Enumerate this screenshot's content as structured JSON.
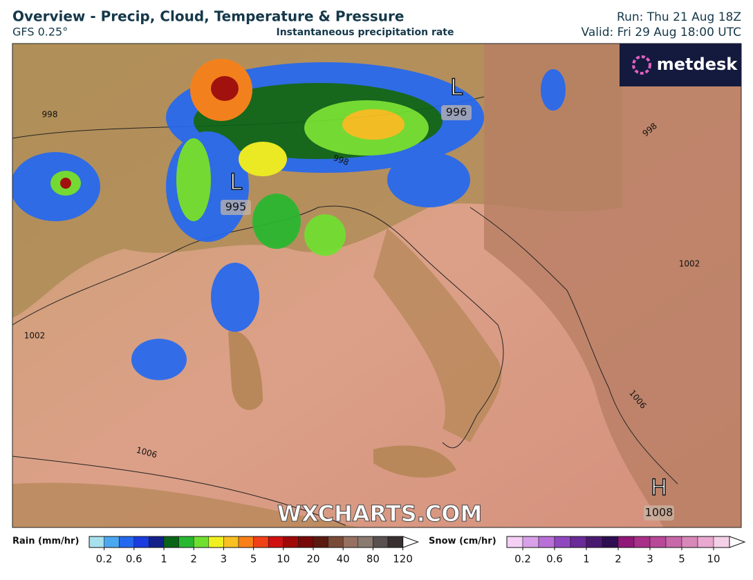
{
  "header": {
    "title": "Overview - Precip, Cloud, Temperature & Pressure",
    "model": "GFS 0.25°",
    "subtitle": "Instantaneous precipitation rate",
    "run": "Run: Thu 21 Aug 18Z",
    "valid": "Valid: Fri 29 Aug 18:00 UTC"
  },
  "logo": "metdesk",
  "watermark": "WXCHARTS.COM",
  "map": {
    "pressure_centers": [
      {
        "symbol": "L",
        "value": "996"
      },
      {
        "symbol": "L",
        "value": "995"
      },
      {
        "symbol": "H",
        "value": "1008"
      }
    ],
    "isobar_labels": [
      "998",
      "998",
      "998",
      "1002",
      "1002",
      "1006",
      "1006"
    ]
  },
  "legend": {
    "rain": {
      "label": "Rain (mm/hr)",
      "ticks": [
        0.2,
        0.6,
        1,
        2,
        3,
        5,
        10,
        20,
        40,
        80,
        120
      ],
      "colors": [
        "#a8e0ec",
        "#4aa8f0",
        "#2468f0",
        "#1a3ce0",
        "#14208a",
        "#0a6418",
        "#28b830",
        "#70e030",
        "#f0f020",
        "#f8c020",
        "#f88018",
        "#f04018",
        "#d01010",
        "#a00808",
        "#780808",
        "#5a1a10",
        "#7a4a38",
        "#967060",
        "#8a7a70",
        "#5a5050",
        "#383030"
      ]
    },
    "snow": {
      "label": "Snow (cm/hr)",
      "ticks": [
        0.2,
        0.6,
        1,
        2,
        3,
        5,
        10
      ],
      "colors": [
        "#f4d0f4",
        "#d8a0e8",
        "#b870d8",
        "#9048c0",
        "#6a2a98",
        "#4a1a70",
        "#2e0e50",
        "#901878",
        "#a83088",
        "#b84898",
        "#c868a8",
        "#d888b8",
        "#e8a8d0",
        "#f4d0e8"
      ]
    }
  }
}
